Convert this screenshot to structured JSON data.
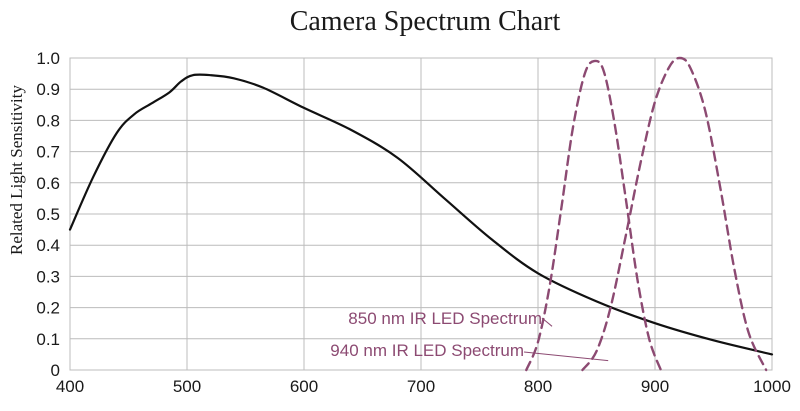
{
  "chart_data": {
    "type": "line",
    "title": "Camera Spectrum Chart",
    "xlabel": "",
    "ylabel": "Related Light Sensitivity",
    "xlim": [
      400,
      1000
    ],
    "ylim": [
      0,
      1.0
    ],
    "x_ticks": [
      400,
      500,
      600,
      700,
      800,
      900,
      1000
    ],
    "y_ticks": [
      0,
      0.1,
      0.2,
      0.3,
      0.4,
      0.5,
      0.6,
      0.7,
      0.8,
      0.9,
      1.0
    ],
    "y_tick_labels": [
      "0",
      "0.1",
      "0.2",
      "0.3",
      "0.4",
      "0.5",
      "0.6",
      "0.7",
      "0.8",
      "0.9",
      "1.0"
    ],
    "grid": true,
    "series": [
      {
        "color": "#111111",
        "style": "solid",
        "x": [
          400,
          420,
          440,
          455,
          470,
          485,
          495,
          505,
          520,
          540,
          565,
          600,
          640,
          680,
          720,
          760,
          800,
          850,
          900,
          950,
          1000
        ],
        "y": [
          0.45,
          0.62,
          0.76,
          0.82,
          0.855,
          0.89,
          0.925,
          0.945,
          0.945,
          0.935,
          0.905,
          0.84,
          0.77,
          0.68,
          0.55,
          0.42,
          0.31,
          0.22,
          0.15,
          0.095,
          0.05
        ]
      },
      {
        "color": "#8c4a72",
        "style": "dashed",
        "x": [
          790,
          800,
          810,
          820,
          830,
          840,
          848,
          856,
          865,
          875,
          885,
          895,
          905
        ],
        "y": [
          0.0,
          0.09,
          0.27,
          0.52,
          0.78,
          0.95,
          0.99,
          0.96,
          0.8,
          0.55,
          0.29,
          0.1,
          0.0
        ]
      },
      {
        "color": "#8c4a72",
        "style": "dashed",
        "x": [
          838,
          850,
          862,
          875,
          888,
          900,
          912,
          921,
          930,
          943,
          956,
          968,
          980,
          995
        ],
        "y": [
          0.0,
          0.06,
          0.2,
          0.43,
          0.67,
          0.86,
          0.97,
          1.0,
          0.97,
          0.83,
          0.58,
          0.32,
          0.12,
          0.0
        ]
      }
    ],
    "annotations": [
      {
        "text": "850 nm IR LED Spectrum",
        "color": "#8c4a72",
        "points_to": [
          812,
          0.14
        ]
      },
      {
        "text": "940 nm IR LED Spectrum",
        "color": "#8c4a72",
        "points_to": [
          860,
          0.03
        ]
      }
    ]
  }
}
